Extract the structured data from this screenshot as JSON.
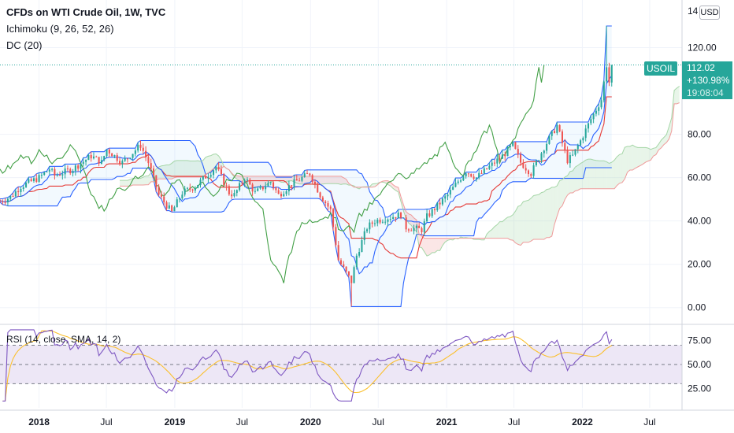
{
  "header": {
    "title": "CFDs on WTI Crude Oil, 1W, TVC",
    "indicator_ichimoku": "Ichimoku (9, 26, 52, 26)",
    "indicator_dc": "DC (20)",
    "currency": "USD",
    "axis_top_cut": "14"
  },
  "price_tag": {
    "symbol": "USOIL",
    "last": "112.02",
    "change": "+130.98%",
    "countdown": "19:08:04"
  },
  "colors": {
    "up": "#26a69a",
    "down": "#ef5350",
    "conversion": "#2962ff",
    "base": "#b71c1c",
    "lagging": "#43a047",
    "donchian": "#2962ff",
    "cloud_up": "#a5d6a7",
    "cloud_down": "#ef9a9a",
    "rsi": "#7e57c2",
    "rsi_ma": "#fbc02d",
    "rsi_band": "#ede7f6"
  },
  "chart_data": [
    {
      "type": "candlestick",
      "pane": "price",
      "title": "CFDs on WTI Crude Oil, 1W, TVC",
      "y_ticks": [
        "120.00",
        "80.00",
        "60.00",
        "40.00",
        "20.00",
        "0.00"
      ],
      "y_tick_values": [
        120,
        80,
        60,
        40,
        20,
        0
      ],
      "ylim": [
        -7,
        142
      ],
      "x_ticks": [
        "2018",
        "Jul",
        "2019",
        "Jul",
        "2020",
        "Jul",
        "2021",
        "Jul",
        "2022",
        "Jul"
      ],
      "x_tick_dates": [
        "2018-01-01",
        "2018-07-01",
        "2019-01-01",
        "2019-07-01",
        "2020-01-01",
        "2020-07-01",
        "2021-01-01",
        "2021-07-01",
        "2022-01-01",
        "2022-07-01"
      ],
      "xlim": [
        "2017-09-18",
        "2022-09-26"
      ],
      "close_anchors": [
        [
          "2017-09-18",
          49
        ],
        [
          "2017-10-16",
          51
        ],
        [
          "2017-11-13",
          56
        ],
        [
          "2018-01-01",
          60
        ],
        [
          "2018-01-29",
          64
        ],
        [
          "2018-02-12",
          61
        ],
        [
          "2018-04-02",
          64
        ],
        [
          "2018-05-21",
          70
        ],
        [
          "2018-06-18",
          67
        ],
        [
          "2018-07-02",
          73
        ],
        [
          "2018-08-13",
          67
        ],
        [
          "2018-10-01",
          75
        ],
        [
          "2018-10-22",
          67
        ],
        [
          "2018-11-19",
          52
        ],
        [
          "2018-12-24",
          44
        ],
        [
          "2019-01-21",
          53
        ],
        [
          "2019-02-25",
          56
        ],
        [
          "2019-04-22",
          65
        ],
        [
          "2019-05-27",
          53
        ],
        [
          "2019-06-10",
          52
        ],
        [
          "2019-07-08",
          60
        ],
        [
          "2019-08-05",
          53
        ],
        [
          "2019-09-16",
          58
        ],
        [
          "2019-10-07",
          52
        ],
        [
          "2019-11-11",
          57
        ],
        [
          "2019-12-30",
          62
        ],
        [
          "2020-01-27",
          52
        ],
        [
          "2020-02-24",
          45
        ],
        [
          "2020-03-16",
          22
        ],
        [
          "2020-04-20",
          12
        ],
        [
          "2020-05-04",
          24
        ],
        [
          "2020-06-01",
          37
        ],
        [
          "2020-06-22",
          40
        ],
        [
          "2020-08-31",
          43
        ],
        [
          "2020-09-14",
          37
        ],
        [
          "2020-10-26",
          36
        ],
        [
          "2020-11-09",
          42
        ],
        [
          "2020-12-07",
          47
        ],
        [
          "2021-01-04",
          52
        ],
        [
          "2021-02-22",
          63
        ],
        [
          "2021-03-22",
          60
        ],
        [
          "2021-04-26",
          65
        ],
        [
          "2021-05-31",
          70
        ],
        [
          "2021-06-28",
          75
        ],
        [
          "2021-07-19",
          67
        ],
        [
          "2021-08-16",
          62
        ],
        [
          "2021-09-20",
          74
        ],
        [
          "2021-10-25",
          84
        ],
        [
          "2021-11-22",
          68
        ],
        [
          "2021-12-06",
          70
        ],
        [
          "2021-12-27",
          77
        ],
        [
          "2022-01-24",
          87
        ],
        [
          "2022-02-21",
          96
        ],
        [
          "2022-03-07",
          112
        ],
        [
          "2022-03-14",
          104
        ],
        [
          "2022-03-21",
          112
        ]
      ],
      "max_high": 130,
      "last_close": 112.02,
      "change_pct": 130.98,
      "lines": [
        {
          "name": "Conversion Line",
          "period": 9,
          "color": "#2962ff"
        },
        {
          "name": "Base Line",
          "period": 26,
          "color": "#b71c1c"
        },
        {
          "name": "Lagging Span",
          "shift": -26,
          "color": "#43a047"
        },
        {
          "name": "Leading Span A",
          "shift": 26,
          "color": "#a5d6a7"
        },
        {
          "name": "Leading Span B",
          "period": 52,
          "shift": 26,
          "color": "#ef9a9a"
        },
        {
          "name": "Donchian Upper",
          "period": 20,
          "color": "#2962ff"
        },
        {
          "name": "Donchian Lower",
          "period": 20,
          "color": "#2962ff"
        },
        {
          "name": "Donchian Basis",
          "period": 20,
          "color": "#ff6d00"
        }
      ],
      "last_price_line": {
        "value": 112.02,
        "style": "dotted",
        "color": "#26a69a"
      }
    },
    {
      "type": "line",
      "pane": "rsi",
      "title": "RSI (14, close, SMA, 14, 2)",
      "y_ticks": [
        "75.00",
        "50.00",
        "25.00"
      ],
      "y_tick_values": [
        75,
        50,
        25
      ],
      "ylim": [
        5,
        90
      ],
      "bands": [
        70,
        50,
        30
      ],
      "series": [
        {
          "name": "RSI",
          "period": 14,
          "color": "#7e57c2"
        },
        {
          "name": "RSI-based MA",
          "period": 14,
          "color": "#fbc02d"
        }
      ]
    }
  ]
}
